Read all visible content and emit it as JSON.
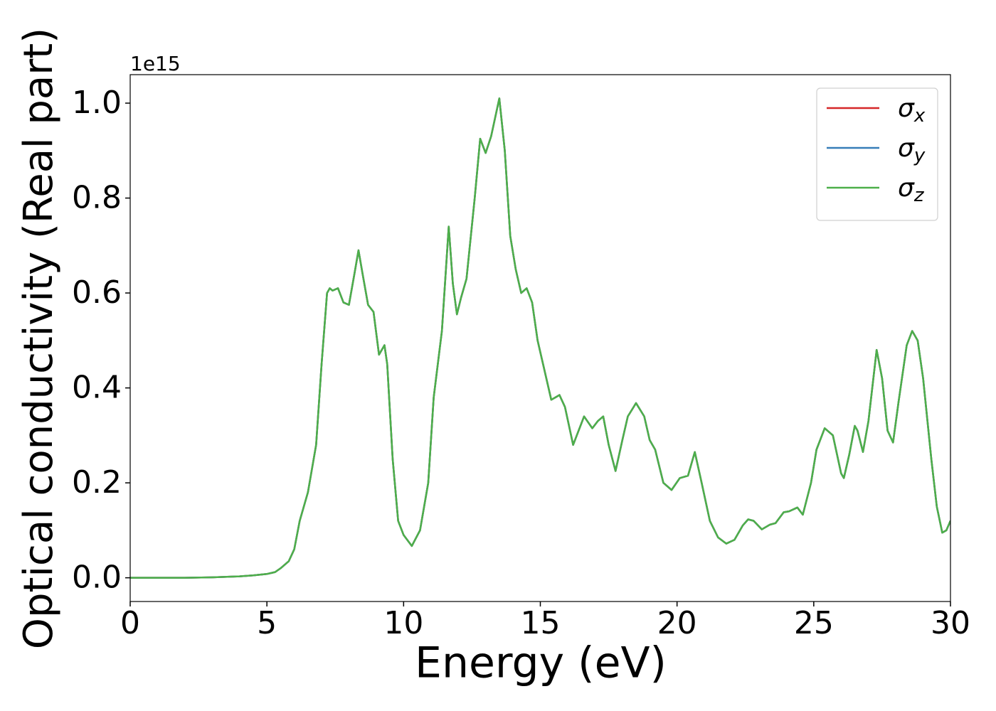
{
  "chart_data": {
    "type": "line",
    "y_label": "Optical conductivity (Real part)",
    "x_label": "Energy (eV)",
    "y_offset_label": "1e15",
    "xlim": [
      0,
      30
    ],
    "xticks": [
      0,
      5,
      10,
      15,
      20,
      25,
      30
    ],
    "ylim": [
      -0.05,
      1.06
    ],
    "yticks": [
      {
        "value": 0,
        "label": "0.0"
      },
      0.2,
      0.4,
      0.6,
      0.8,
      {
        "value": 1,
        "label": "1.0"
      }
    ],
    "legend": "upper right",
    "x": [
      0,
      1,
      2,
      3,
      4,
      4.5,
      5,
      5.3,
      5.5,
      5.8,
      6.0,
      6.2,
      6.5,
      6.8,
      7.0,
      7.2,
      7.3,
      7.4,
      7.6,
      7.8,
      8.0,
      8.2,
      8.35,
      8.5,
      8.7,
      8.9,
      9.1,
      9.3,
      9.4,
      9.6,
      9.8,
      10.0,
      10.3,
      10.6,
      10.9,
      11.1,
      11.4,
      11.65,
      11.8,
      11.95,
      12.1,
      12.3,
      12.6,
      12.8,
      13.0,
      13.2,
      13.5,
      13.7,
      13.9,
      14.1,
      14.3,
      14.5,
      14.7,
      14.9,
      15.1,
      15.4,
      15.7,
      15.9,
      16.2,
      16.4,
      16.6,
      16.9,
      17.1,
      17.3,
      17.5,
      17.75,
      18.0,
      18.2,
      18.5,
      18.8,
      19.0,
      19.2,
      19.5,
      19.8,
      20.1,
      20.4,
      20.65,
      20.9,
      21.2,
      21.5,
      21.8,
      22.1,
      22.4,
      22.6,
      22.8,
      23.1,
      23.4,
      23.6,
      23.9,
      24.1,
      24.4,
      24.6,
      24.9,
      25.1,
      25.4,
      25.7,
      26.0,
      26.1,
      26.3,
      26.5,
      26.6,
      26.8,
      27.0,
      27.3,
      27.5,
      27.7,
      27.9,
      28.1,
      28.4,
      28.6,
      28.8,
      29.0,
      29.3,
      29.5,
      29.7,
      29.85,
      30
    ],
    "series": [
      {
        "name": "σx",
        "color": "#d62728",
        "values": [
          0,
          0,
          0,
          0.001,
          0.003,
          0.005,
          0.008,
          0.012,
          0.02,
          0.035,
          0.06,
          0.12,
          0.18,
          0.28,
          0.45,
          0.6,
          0.61,
          0.605,
          0.61,
          0.58,
          0.575,
          0.64,
          0.69,
          0.64,
          0.575,
          0.56,
          0.47,
          0.49,
          0.45,
          0.25,
          0.12,
          0.09,
          0.067,
          0.1,
          0.2,
          0.38,
          0.52,
          0.74,
          0.62,
          0.555,
          0.59,
          0.63,
          0.8,
          0.925,
          0.895,
          0.93,
          1.01,
          0.9,
          0.72,
          0.65,
          0.6,
          0.61,
          0.58,
          0.5,
          0.45,
          0.375,
          0.385,
          0.36,
          0.28,
          0.31,
          0.34,
          0.315,
          0.33,
          0.34,
          0.28,
          0.225,
          0.29,
          0.34,
          0.368,
          0.34,
          0.29,
          0.27,
          0.2,
          0.185,
          0.21,
          0.215,
          0.265,
          0.2,
          0.12,
          0.085,
          0.072,
          0.08,
          0.11,
          0.123,
          0.12,
          0.102,
          0.112,
          0.115,
          0.138,
          0.14,
          0.148,
          0.133,
          0.2,
          0.27,
          0.315,
          0.3,
          0.22,
          0.21,
          0.26,
          0.32,
          0.31,
          0.265,
          0.33,
          0.48,
          0.42,
          0.31,
          0.285,
          0.37,
          0.49,
          0.52,
          0.5,
          0.42,
          0.25,
          0.15,
          0.095,
          0.1,
          0.12
        ]
      },
      {
        "name": "σy",
        "color": "#377eb8",
        "values": [
          0,
          0,
          0,
          0.001,
          0.003,
          0.005,
          0.008,
          0.012,
          0.02,
          0.035,
          0.06,
          0.12,
          0.18,
          0.28,
          0.45,
          0.6,
          0.61,
          0.605,
          0.61,
          0.58,
          0.575,
          0.64,
          0.69,
          0.64,
          0.575,
          0.56,
          0.47,
          0.49,
          0.45,
          0.25,
          0.12,
          0.09,
          0.067,
          0.1,
          0.2,
          0.38,
          0.52,
          0.74,
          0.62,
          0.555,
          0.59,
          0.63,
          0.8,
          0.925,
          0.895,
          0.93,
          1.01,
          0.9,
          0.72,
          0.65,
          0.6,
          0.61,
          0.58,
          0.5,
          0.45,
          0.375,
          0.385,
          0.36,
          0.28,
          0.31,
          0.34,
          0.315,
          0.33,
          0.34,
          0.28,
          0.225,
          0.29,
          0.34,
          0.368,
          0.34,
          0.29,
          0.27,
          0.2,
          0.185,
          0.21,
          0.215,
          0.265,
          0.2,
          0.12,
          0.085,
          0.072,
          0.08,
          0.11,
          0.123,
          0.12,
          0.102,
          0.112,
          0.115,
          0.138,
          0.14,
          0.148,
          0.133,
          0.2,
          0.27,
          0.315,
          0.3,
          0.22,
          0.21,
          0.26,
          0.32,
          0.31,
          0.265,
          0.33,
          0.48,
          0.42,
          0.31,
          0.285,
          0.37,
          0.49,
          0.52,
          0.5,
          0.42,
          0.25,
          0.15,
          0.095,
          0.1,
          0.12
        ]
      },
      {
        "name": "σz",
        "color": "#4daf4a",
        "values": [
          0,
          0,
          0,
          0.001,
          0.003,
          0.005,
          0.008,
          0.012,
          0.02,
          0.035,
          0.06,
          0.12,
          0.18,
          0.28,
          0.45,
          0.6,
          0.61,
          0.605,
          0.61,
          0.58,
          0.575,
          0.64,
          0.69,
          0.64,
          0.575,
          0.56,
          0.47,
          0.49,
          0.45,
          0.25,
          0.12,
          0.09,
          0.067,
          0.1,
          0.2,
          0.38,
          0.52,
          0.74,
          0.62,
          0.555,
          0.59,
          0.63,
          0.8,
          0.925,
          0.895,
          0.93,
          1.01,
          0.9,
          0.72,
          0.65,
          0.6,
          0.61,
          0.58,
          0.5,
          0.45,
          0.375,
          0.385,
          0.36,
          0.28,
          0.31,
          0.34,
          0.315,
          0.33,
          0.34,
          0.28,
          0.225,
          0.29,
          0.34,
          0.368,
          0.34,
          0.29,
          0.27,
          0.2,
          0.185,
          0.21,
          0.215,
          0.265,
          0.2,
          0.12,
          0.085,
          0.072,
          0.08,
          0.11,
          0.123,
          0.12,
          0.102,
          0.112,
          0.115,
          0.138,
          0.14,
          0.148,
          0.133,
          0.2,
          0.27,
          0.315,
          0.3,
          0.22,
          0.21,
          0.26,
          0.32,
          0.31,
          0.265,
          0.33,
          0.48,
          0.42,
          0.31,
          0.285,
          0.37,
          0.49,
          0.52,
          0.5,
          0.42,
          0.25,
          0.15,
          0.095,
          0.1,
          0.12
        ]
      }
    ]
  }
}
